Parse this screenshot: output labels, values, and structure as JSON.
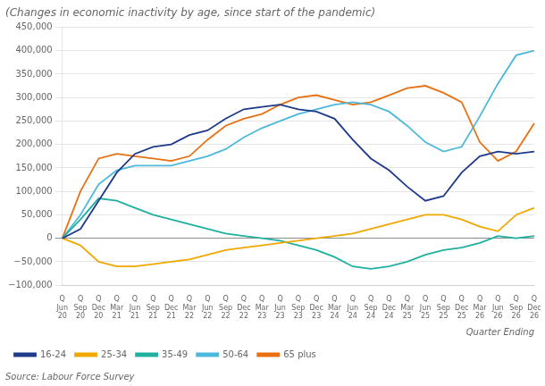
{
  "chart_data": {
    "type": "line",
    "title": "(Changes in economic inactivity by age, since start of the pandemic)",
    "xlabel": "Quarter Ending",
    "annotations": [
      "Source: Labour Force Survey"
    ],
    "categories": [
      "Q\nJun\n20",
      "Q\nSep\n20",
      "Q\nDec\n20",
      "Q\nMar\n21",
      "Q\nJun\n21",
      "Q\nSep\n21",
      "Q\nDec\n21",
      "Q\nMar\n22",
      "Q\nJun\n22",
      "Q\nSep\n22",
      "Q\nDec\n22",
      "Q\nMar\n23",
      "Q\nJun\n23",
      "Q\nSep\n23",
      "Q\nDec\n23",
      "Q\nMar\n24",
      "Q\nJun\n24",
      "Q\nSep\n24",
      "Q\nDec\n24",
      "Q\nMar\n25",
      "Q\nJun\n25",
      "Q\nSep\n25",
      "Q\nDec\n25",
      "Q\nMar\n26",
      "Q\nJun\n26",
      "Q\nSep\n26",
      "Q\nDec\n26"
    ],
    "series": [
      {
        "name": "16-24",
        "color": "#1e3a8a",
        "values": [
          0,
          20000,
          80000,
          140000,
          180000,
          195000,
          200000,
          220000,
          230000,
          255000,
          275000,
          280000,
          285000,
          275000,
          270000,
          255000,
          210000,
          170000,
          145000,
          110000,
          80000,
          90000,
          140000,
          175000,
          185000,
          180000,
          185000
        ]
      },
      {
        "name": "25-34",
        "color": "#f0a800",
        "values": [
          0,
          -15000,
          -50000,
          -60000,
          -60000,
          -55000,
          -50000,
          -45000,
          -35000,
          -25000,
          -20000,
          -15000,
          -10000,
          -5000,
          0,
          5000,
          10000,
          20000,
          30000,
          40000,
          50000,
          50000,
          40000,
          25000,
          15000,
          50000,
          65000
        ]
      },
      {
        "name": "35-49",
        "color": "#20b0a0",
        "values": [
          0,
          40000,
          85000,
          80000,
          65000,
          50000,
          40000,
          30000,
          20000,
          10000,
          5000,
          0,
          -5000,
          -15000,
          -25000,
          -40000,
          -60000,
          -65000,
          -60000,
          -50000,
          -35000,
          -25000,
          -20000,
          -10000,
          5000,
          0,
          5000
        ]
      },
      {
        "name": "50-64",
        "color": "#4cb8dc",
        "values": [
          0,
          50000,
          115000,
          145000,
          155000,
          155000,
          155000,
          165000,
          175000,
          190000,
          215000,
          235000,
          250000,
          265000,
          275000,
          285000,
          290000,
          285000,
          270000,
          240000,
          205000,
          185000,
          195000,
          260000,
          330000,
          390000,
          400000
        ]
      },
      {
        "name": "65 plus",
        "color": "#e87010",
        "values": [
          0,
          100000,
          170000,
          180000,
          175000,
          170000,
          165000,
          175000,
          210000,
          240000,
          255000,
          265000,
          285000,
          300000,
          305000,
          295000,
          285000,
          290000,
          305000,
          320000,
          325000,
          310000,
          290000,
          205000,
          165000,
          185000,
          245000
        ]
      }
    ],
    "ylim": [
      -100000,
      450000
    ],
    "yticks": [
      {
        "value": -100000,
        "label": "−100,000"
      },
      {
        "value": -50000,
        "label": "−50,000"
      },
      0,
      {
        "value": 50000,
        "label": "50,000"
      },
      {
        "value": 100000,
        "label": "100,000"
      },
      {
        "value": 150000,
        "label": "150,000"
      },
      {
        "value": 200000,
        "label": "200,000"
      },
      {
        "value": 250000,
        "label": "250,000"
      },
      {
        "value": 300000,
        "label": "300,000"
      },
      {
        "value": 350000,
        "label": "350,000"
      },
      {
        "value": 400000,
        "label": "400,000"
      },
      {
        "value": 450000,
        "label": "450,000"
      }
    ],
    "grid": true,
    "legend": "bottom"
  }
}
